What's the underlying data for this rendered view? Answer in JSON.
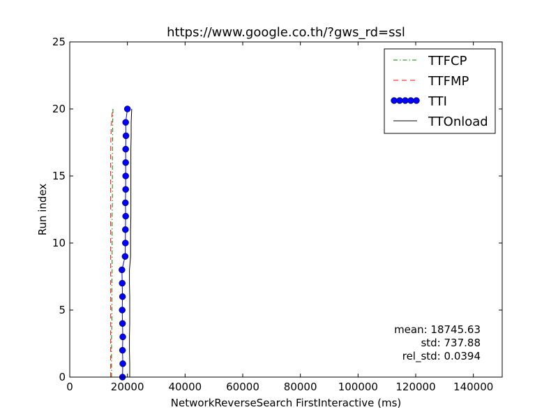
{
  "chart_data": {
    "type": "line",
    "title": "https://www.google.co.th/?gws_rd=ssl",
    "xlabel": "NetworkReverseSearch FirstInteractive (ms)",
    "ylabel": "Run index",
    "xlim": [
      0,
      150000
    ],
    "ylim": [
      0,
      25
    ],
    "x_ticks": [
      "0",
      "20000",
      "40000",
      "60000",
      "80000",
      "100000",
      "120000",
      "140000"
    ],
    "y_ticks": [
      "0",
      "5",
      "10",
      "15",
      "20",
      "25"
    ],
    "x_tick_values": [
      0,
      20000,
      40000,
      60000,
      80000,
      100000,
      120000,
      140000
    ],
    "y_tick_values": [
      0,
      5,
      10,
      15,
      20,
      25
    ],
    "grid": false,
    "legend_position": "top-right",
    "y": [
      0,
      1,
      2,
      3,
      4,
      5,
      6,
      7,
      8,
      9,
      10,
      11,
      12,
      13,
      14,
      15,
      16,
      17,
      18,
      19,
      20
    ],
    "series": [
      {
        "name": "TTFCP",
        "color": "#008000",
        "style": "dash-dot",
        "x": [
          14500,
          14500,
          14500,
          14500,
          14600,
          14600,
          14600,
          14600,
          14700,
          14700,
          14700,
          14700,
          14700,
          14800,
          14800,
          14800,
          14800,
          14800,
          14900,
          14900,
          15000
        ]
      },
      {
        "name": "TTFMP",
        "color": "#ff0000",
        "style": "dashed",
        "x": [
          14200,
          14200,
          14200,
          14200,
          14200,
          14200,
          14200,
          14200,
          14200,
          14200,
          14200,
          14200,
          14200,
          14200,
          14200,
          14200,
          14200,
          14200,
          14300,
          14500,
          14800
        ]
      },
      {
        "name": "TTI",
        "color": "#0000ff",
        "style": "solid-markers",
        "x": [
          18300,
          18400,
          18300,
          18400,
          18300,
          18200,
          18300,
          18200,
          18100,
          19200,
          19300,
          19300,
          19400,
          19300,
          19400,
          19400,
          19400,
          19400,
          19500,
          19400,
          20000
        ]
      },
      {
        "name": "TTOnload",
        "color": "#000000",
        "style": "solid",
        "x": [
          20800,
          20800,
          20700,
          20700,
          20800,
          20800,
          20800,
          20700,
          20700,
          21100,
          21100,
          21100,
          21200,
          21200,
          21200,
          21200,
          21200,
          21200,
          21300,
          21300,
          21500
        ]
      }
    ],
    "stats": [
      "mean: 18745.63",
      "std: 737.88",
      "rel_std: 0.0394"
    ]
  }
}
